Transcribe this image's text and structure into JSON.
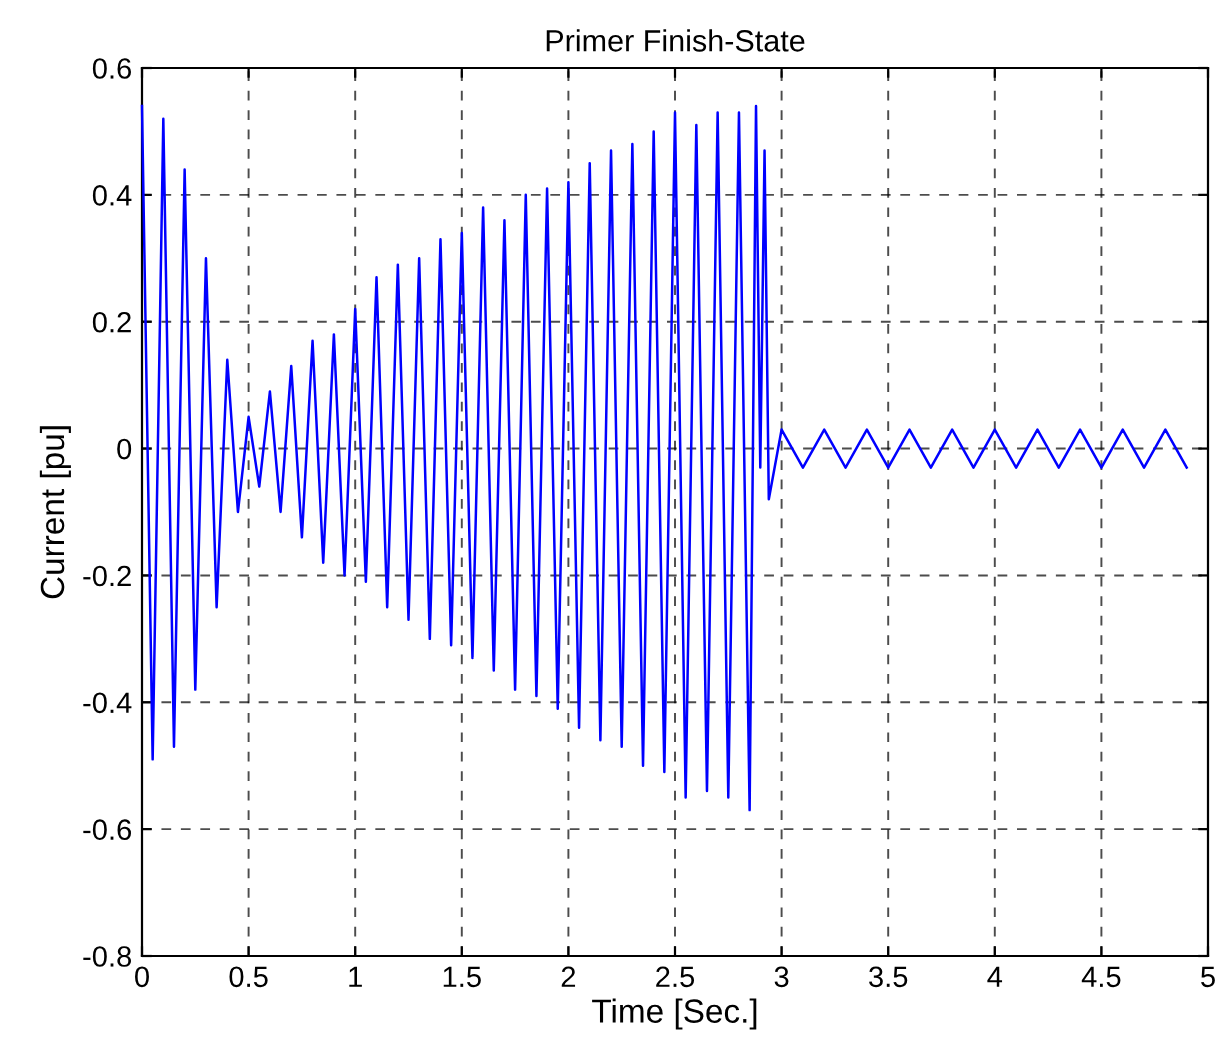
{
  "chart_data": {
    "type": "line",
    "title": "Primer Finish-State",
    "xlabel": "Time [Sec.]",
    "ylabel": "Current [pu]",
    "xlim": [
      0,
      5
    ],
    "ylim": [
      -0.8,
      0.6
    ],
    "xticks": [
      0,
      0.5,
      1,
      1.5,
      2,
      2.5,
      3,
      3.5,
      4,
      4.5,
      5
    ],
    "yticks": [
      -0.8,
      -0.6,
      -0.4,
      -0.2,
      0,
      0.2,
      0.4,
      0.6
    ],
    "grid": true,
    "line_style": "solid",
    "series": [
      {
        "color": "#0000ff",
        "x": [
          0,
          0.05,
          0.1,
          0.15,
          0.2,
          0.25,
          0.3,
          0.35,
          0.4,
          0.45,
          0.5,
          0.55,
          0.6,
          0.65,
          0.7,
          0.75,
          0.8,
          0.85,
          0.9,
          0.95,
          1.0,
          1.05,
          1.1,
          1.15,
          1.2,
          1.25,
          1.3,
          1.35,
          1.4,
          1.45,
          1.5,
          1.55,
          1.6,
          1.65,
          1.7,
          1.75,
          1.8,
          1.85,
          1.9,
          1.95,
          2.0,
          2.05,
          2.1,
          2.15,
          2.2,
          2.25,
          2.3,
          2.35,
          2.4,
          2.45,
          2.5,
          2.55,
          2.6,
          2.65,
          2.7,
          2.75,
          2.8,
          2.85,
          2.88,
          2.9,
          2.92,
          2.94,
          3.0,
          3.1,
          3.2,
          3.3,
          3.4,
          3.5,
          3.6,
          3.7,
          3.8,
          3.9,
          4.0,
          4.1,
          4.2,
          4.3,
          4.4,
          4.5,
          4.6,
          4.7,
          4.8,
          4.9
        ],
        "values": [
          0.54,
          -0.49,
          0.52,
          -0.47,
          0.44,
          -0.38,
          0.3,
          -0.25,
          0.14,
          -0.1,
          0.05,
          -0.06,
          0.09,
          -0.1,
          0.13,
          -0.14,
          0.17,
          -0.18,
          0.18,
          -0.2,
          0.22,
          -0.21,
          0.27,
          -0.25,
          0.29,
          -0.27,
          0.3,
          -0.3,
          0.33,
          -0.31,
          0.34,
          -0.33,
          0.38,
          -0.35,
          0.36,
          -0.38,
          0.4,
          -0.39,
          0.41,
          -0.41,
          0.42,
          -0.44,
          0.45,
          -0.46,
          0.47,
          -0.47,
          0.48,
          -0.5,
          0.5,
          -0.51,
          0.53,
          -0.55,
          0.51,
          -0.54,
          0.53,
          -0.55,
          0.53,
          -0.57,
          0.54,
          -0.03,
          0.47,
          -0.08,
          0.03,
          -0.03,
          0.03,
          -0.03,
          0.03,
          -0.03,
          0.03,
          -0.03,
          0.03,
          -0.03,
          0.03,
          -0.03,
          0.03,
          -0.03,
          0.03,
          -0.03,
          0.03,
          -0.03,
          0.03,
          -0.03
        ]
      }
    ]
  }
}
